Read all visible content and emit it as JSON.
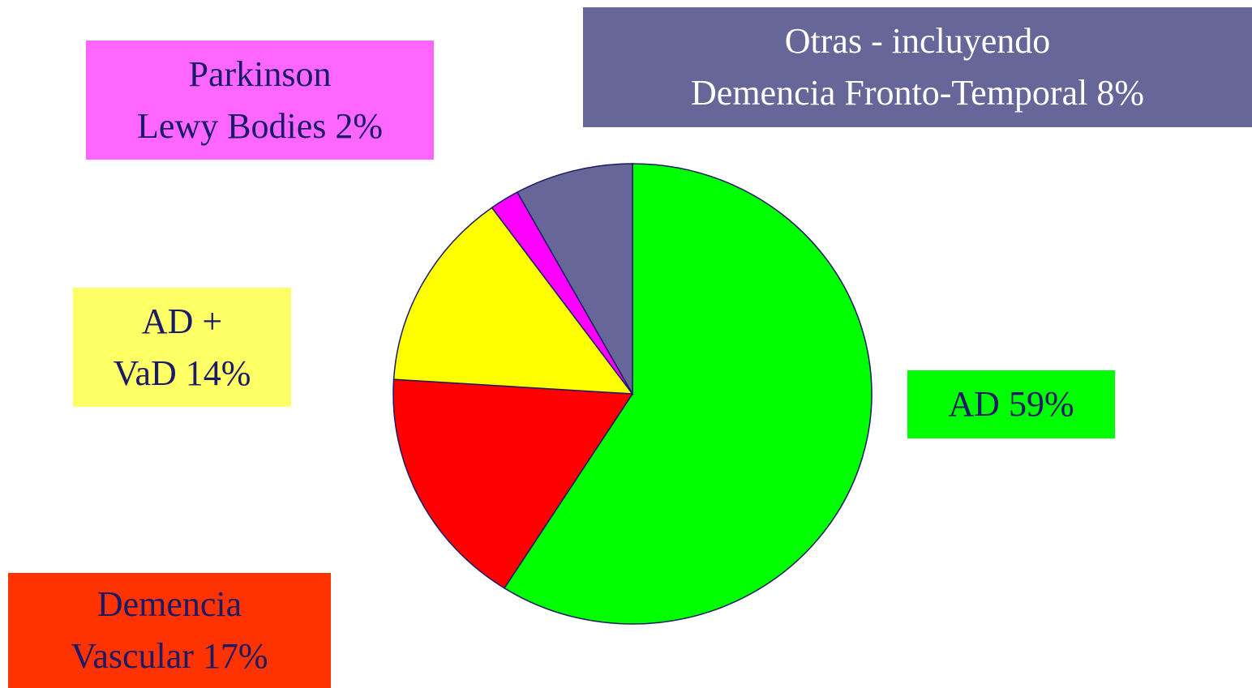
{
  "chart_data": {
    "type": "pie",
    "categories": [
      "AD",
      "Demencia\nVascular",
      "AD +\nVaD",
      "Parkinson\nLewy Bodies",
      "Otras - incluyendo\nDemencia Fronto-Temporal"
    ],
    "values": [
      59,
      17,
      14,
      2,
      8
    ],
    "value_labels": [
      "59%",
      "17%",
      "14%",
      "2%",
      "8%"
    ],
    "colors": [
      "#00ff00",
      "#ff0000",
      "#ffff00",
      "#ff00ff",
      "#666699"
    ],
    "label_colors": [
      "#00ff00",
      "#ff3300",
      "#ffff66",
      "#ff66ff",
      "#666699"
    ],
    "label_text_colors": [
      "#1a1a66",
      "#1a1a66",
      "#1a1a66",
      "#1a1a66",
      "#ffffff"
    ]
  }
}
